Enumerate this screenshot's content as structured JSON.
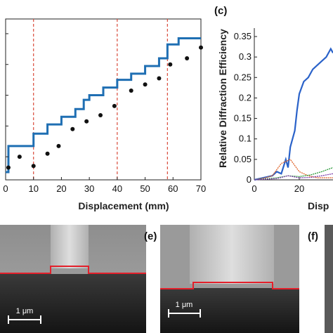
{
  "colors": {
    "step": "#1f6fb3",
    "points": "#111111",
    "vline": "#d94a3a",
    "boundary": "#e3202b",
    "blue": "#2a62c9",
    "orange": "#e0642a",
    "green": "#2a9a3a",
    "purple": "#7a3aa8"
  },
  "panel_labels": {
    "c": "(c)",
    "e": "(e)",
    "f": "(f)"
  },
  "scale_bar": {
    "label_e1": "1 μm",
    "label_e2": "1 μm"
  },
  "chart_data": [
    {
      "type": "line",
      "xlabel": "Displacement (mm)",
      "xlim": [
        0,
        70
      ],
      "xticks": [
        0,
        10,
        20,
        30,
        40,
        50,
        60,
        70
      ],
      "vlines": [
        10,
        40,
        58
      ],
      "series": [
        {
          "kind": "step",
          "x": [
            0,
            1,
            1,
            10,
            10,
            15,
            15,
            20,
            20,
            25,
            25,
            28,
            28,
            30,
            30,
            35,
            35,
            40,
            40,
            45,
            45,
            50,
            50,
            55,
            55,
            58,
            58,
            62,
            62,
            70
          ],
          "y": [
            0.05,
            0.05,
            0.22,
            0.22,
            0.3,
            0.3,
            0.36,
            0.36,
            0.41,
            0.41,
            0.46,
            0.46,
            0.52,
            0.52,
            0.55,
            0.55,
            0.6,
            0.6,
            0.65,
            0.65,
            0.69,
            0.69,
            0.74,
            0.74,
            0.79,
            0.79,
            0.88,
            0.88,
            0.92,
            0.92
          ]
        },
        {
          "kind": "points",
          "x": [
            1,
            5,
            10,
            15,
            19,
            24,
            29,
            34,
            39,
            45,
            50,
            55,
            59,
            65,
            70
          ],
          "y": [
            0.08,
            0.15,
            0.09,
            0.17,
            0.22,
            0.33,
            0.38,
            0.42,
            0.48,
            0.58,
            0.62,
            0.66,
            0.75,
            0.79,
            0.86
          ]
        }
      ]
    },
    {
      "type": "line",
      "xlabel": "Disp",
      "ylabel": "Relative Diffraction Efficiency",
      "ylim": [
        0,
        0.35
      ],
      "yticks": [
        0,
        0.05,
        0.1,
        0.15,
        0.2,
        0.25,
        0.3,
        0.35
      ],
      "ytick_labels": [
        "0",
        "0.05",
        "0.1",
        "0.15",
        "0.2",
        "0.25",
        "0.3",
        "0.35"
      ],
      "xlim": [
        0,
        35
      ],
      "xticks": [
        0,
        20
      ],
      "series": [
        {
          "color_key": "blue",
          "x": [
            0,
            4,
            8,
            10,
            12,
            14,
            15,
            16,
            18,
            19,
            20,
            22,
            24,
            26,
            28,
            30,
            32,
            34,
            35
          ],
          "y": [
            0.0,
            0.005,
            0.01,
            0.02,
            0.015,
            0.05,
            0.03,
            0.08,
            0.12,
            0.17,
            0.21,
            0.24,
            0.25,
            0.27,
            0.28,
            0.29,
            0.3,
            0.32,
            0.31
          ]
        },
        {
          "color_key": "orange",
          "x": [
            0,
            5,
            8,
            10,
            12,
            14,
            16,
            18,
            20,
            24,
            28,
            35
          ],
          "y": [
            0.0,
            0.005,
            0.01,
            0.025,
            0.04,
            0.045,
            0.05,
            0.035,
            0.02,
            0.01,
            0.005,
            0.005
          ]
        },
        {
          "color_key": "green",
          "x": [
            0,
            10,
            15,
            20,
            25,
            30,
            35
          ],
          "y": [
            0.0,
            0.005,
            0.01,
            0.008,
            0.012,
            0.02,
            0.03
          ]
        },
        {
          "color_key": "purple",
          "x": [
            0,
            10,
            15,
            20,
            25,
            30,
            35
          ],
          "y": [
            0.0,
            0.003,
            0.01,
            0.005,
            0.006,
            0.01,
            0.015
          ]
        }
      ]
    }
  ]
}
